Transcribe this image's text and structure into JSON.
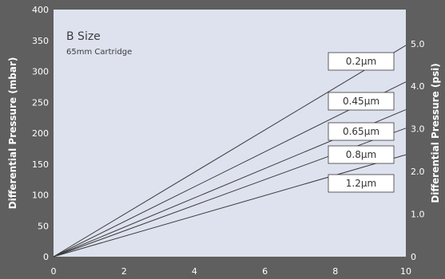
{
  "chart_data": {
    "type": "line",
    "title": "B Size",
    "subtitle": "65mm Cartridge",
    "xlabel": "",
    "ylabel": "Differential Pressure (mbar)",
    "y2label": "Differential Pressure (psi)",
    "xlim": [
      0,
      10
    ],
    "ylim": [
      0,
      400
    ],
    "y2lim": [
      0,
      5.8
    ],
    "x_ticks": [
      "0",
      "2",
      "4",
      "6",
      "8",
      "10"
    ],
    "y_ticks": [
      "0",
      "50",
      "100",
      "150",
      "200",
      "250",
      "300",
      "350",
      "400"
    ],
    "y2_ticks": [
      "0",
      "1.0",
      "2.0",
      "3.0",
      "4.0",
      "5.0"
    ],
    "grid": false,
    "plot_background": "#dde2ee",
    "page_background": "#5f5f5f",
    "line_color": "#3a3a3a",
    "series": [
      {
        "name": "0.2µm",
        "x": [
          0,
          10
        ],
        "y": [
          0,
          342
        ]
      },
      {
        "name": "0.45µm",
        "x": [
          0,
          10
        ],
        "y": [
          0,
          283
        ]
      },
      {
        "name": "0.65µm",
        "x": [
          0,
          10
        ],
        "y": [
          0,
          238
        ]
      },
      {
        "name": "0.8µm",
        "x": [
          0,
          10
        ],
        "y": [
          0,
          208
        ]
      },
      {
        "name": "1.2µm",
        "x": [
          0,
          10
        ],
        "y": [
          0,
          165
        ]
      }
    ]
  }
}
